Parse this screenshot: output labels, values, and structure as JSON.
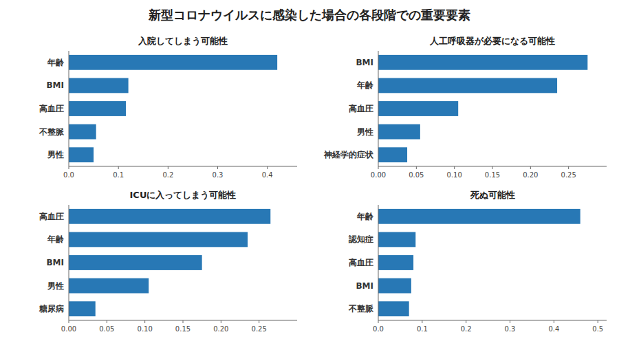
{
  "title": "新型コロナウイルスに感染した場合の各段階での重要要素",
  "chart_data": [
    {
      "type": "bar",
      "orientation": "horizontal",
      "title": "入院してしまう可能性",
      "categories": [
        "年齢",
        "BMI",
        "高血圧",
        "不整脈",
        "男性"
      ],
      "values": [
        0.42,
        0.12,
        0.115,
        0.055,
        0.05
      ],
      "color": "#2878b5",
      "grid": false,
      "xlim": [
        0,
        0.46
      ],
      "xticks": [
        {
          "value": 0.0,
          "label": "0.0"
        },
        0.1,
        0.2,
        0.3,
        0.4
      ]
    },
    {
      "type": "bar",
      "orientation": "horizontal",
      "title": "人工呼吸器が必要になる可能性",
      "categories": [
        "BMI",
        "年齢",
        "高血圧",
        "男性",
        "神経学的症状"
      ],
      "values": [
        0.275,
        0.235,
        0.105,
        0.055,
        0.038
      ],
      "color": "#2878b5",
      "grid": false,
      "xlim": [
        0,
        0.3
      ],
      "xticks": [
        {
          "value": 0.0,
          "label": "0.00"
        },
        0.05,
        {
          "value": 0.1,
          "label": "0.10"
        },
        0.15,
        {
          "value": 0.2,
          "label": "0.20"
        },
        0.25
      ]
    },
    {
      "type": "bar",
      "orientation": "horizontal",
      "title": "ICUに入ってしまう可能性",
      "categories": [
        "高血圧",
        "年齢",
        "BMI",
        "男性",
        "糖尿病"
      ],
      "values": [
        0.265,
        0.235,
        0.175,
        0.105,
        0.035
      ],
      "color": "#2878b5",
      "grid": false,
      "xlim": [
        0,
        0.3
      ],
      "xticks": [
        {
          "value": 0.0,
          "label": "0.00"
        },
        0.05,
        {
          "value": 0.1,
          "label": "0.10"
        },
        0.15,
        {
          "value": 0.2,
          "label": "0.20"
        },
        0.25
      ]
    },
    {
      "type": "bar",
      "orientation": "horizontal",
      "title": "死ぬ可能性",
      "categories": [
        "年齢",
        "認知症",
        "高血圧",
        "BMI",
        "不整脈"
      ],
      "values": [
        0.46,
        0.085,
        0.08,
        0.075,
        0.07
      ],
      "color": "#2878b5",
      "grid": false,
      "xlim": [
        0,
        0.52
      ],
      "xticks": [
        {
          "value": 0.0,
          "label": "0.0"
        },
        0.1,
        0.2,
        0.3,
        0.4,
        0.5
      ]
    }
  ]
}
